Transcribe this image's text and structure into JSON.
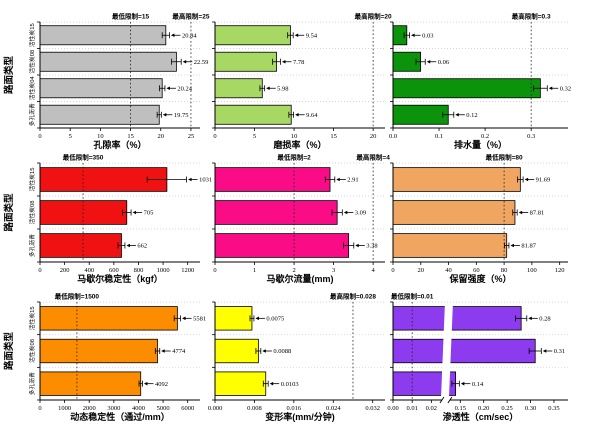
{
  "figure": {
    "y_axis_label": "路面类型"
  },
  "chart_data": [
    {
      "type": "bar",
      "orientation": "horizontal",
      "xlabel": "孔隙率（%）",
      "bar_color": "#bfbfbf",
      "categories": [
        "活性炭15",
        "活性炭08",
        "活性炭04",
        "多孔沥青"
      ],
      "values": [
        20.84,
        22.59,
        20.24,
        19.75
      ],
      "value_labels": [
        "20.84",
        "22.59",
        "20.24",
        "19.75"
      ],
      "errors": [
        0.6,
        0.8,
        0.45,
        0.35
      ],
      "xlim": [
        0,
        26.5
      ],
      "tick_values": [
        0,
        5,
        10,
        15,
        20,
        25
      ],
      "tick_labels": [
        "0",
        "5",
        "10",
        "15",
        "20",
        "25"
      ],
      "limits": [
        {
          "label": "最低限制=15",
          "value": 15,
          "color": "#ff4500"
        },
        {
          "label": "最高限制=25",
          "value": 25,
          "color": "#ff1e00"
        }
      ]
    },
    {
      "type": "bar",
      "orientation": "horizontal",
      "xlabel": "磨损率（%）",
      "bar_color": "#a8d864",
      "categories": [
        "活性炭15",
        "活性炭08",
        "活性炭04",
        "多孔沥青"
      ],
      "values": [
        9.54,
        7.78,
        5.98,
        9.64
      ],
      "value_labels": [
        "9.54",
        "7.78",
        "5.98",
        "9.64"
      ],
      "errors": [
        0.35,
        0.5,
        0.3,
        0.3
      ],
      "xlim": [
        0,
        21.5
      ],
      "tick_values": [
        0,
        5,
        10,
        15,
        20
      ],
      "tick_labels": [
        "0",
        "5",
        "10",
        "15",
        "20"
      ],
      "limits": [
        {
          "label": "最高限制=20",
          "value": 20,
          "color": "#ff1e00"
        }
      ]
    },
    {
      "type": "bar",
      "orientation": "horizontal",
      "xlabel": "排水量（%）",
      "bar_color": "#0c930c",
      "categories": [
        "活性炭15",
        "活性炭08",
        "活性炭04",
        "多孔沥青"
      ],
      "values": [
        0.03,
        0.06,
        0.32,
        0.12
      ],
      "value_labels": [
        "0.03",
        "0.06",
        "0.32",
        "0.12"
      ],
      "errors": [
        0.006,
        0.01,
        0.015,
        0.012
      ],
      "xlim": [
        0,
        0.38
      ],
      "tick_values": [
        0.0,
        0.1,
        0.2,
        0.3
      ],
      "tick_labels": [
        "0.0",
        "0.1",
        "0.2",
        "0.3"
      ],
      "limits": [
        {
          "label": "最高限制=0.3",
          "value": 0.3,
          "color": "#ff1e00"
        }
      ]
    },
    {
      "type": "bar",
      "orientation": "horizontal",
      "xlabel": "马歇尔稳定性（kgf）",
      "bar_color": "#f01212",
      "categories": [
        "活性炭15",
        "活性炭08",
        "多孔沥青"
      ],
      "values": [
        1031,
        705,
        662
      ],
      "value_labels": [
        "1031",
        "705",
        "662"
      ],
      "errors": [
        160,
        35,
        28
      ],
      "xlim": [
        0,
        1300
      ],
      "tick_values": [
        0,
        200,
        400,
        600,
        800,
        1000,
        1200
      ],
      "tick_labels": [
        "0",
        "200",
        "400",
        "600",
        "800",
        "1000",
        "1200"
      ],
      "limits": [
        {
          "label": "最低限制=350",
          "value": 350,
          "color": "#ff4500"
        }
      ]
    },
    {
      "type": "bar",
      "orientation": "horizontal",
      "xlabel": "马歇尔流量(mm)",
      "bar_color": "#fa0c86",
      "categories": [
        "活性炭15",
        "活性炭08",
        "多孔沥青"
      ],
      "values": [
        2.91,
        3.09,
        3.38
      ],
      "value_labels": [
        "2.91",
        "3.09",
        "3.38"
      ],
      "errors": [
        0.12,
        0.13,
        0.13
      ],
      "xlim": [
        0,
        4.3
      ],
      "tick_values": [
        0,
        1,
        2,
        3,
        4
      ],
      "tick_labels": [
        "0",
        "1",
        "2",
        "3",
        "4"
      ],
      "limits": [
        {
          "label": "最低限制=2",
          "value": 2,
          "color": "#ff4500"
        },
        {
          "label": "最高限制=4",
          "value": 4,
          "color": "#ff1e00"
        }
      ]
    },
    {
      "type": "bar",
      "orientation": "horizontal",
      "xlabel": "保留强度（%）",
      "bar_color": "#f0a661",
      "categories": [
        "活性炭15",
        "活性炭08",
        "多孔沥青"
      ],
      "values": [
        91.69,
        87.81,
        81.87
      ],
      "value_labels": [
        "91.69",
        "87.81",
        "81.87"
      ],
      "errors": [
        2,
        1.6,
        1.6
      ],
      "xlim": [
        0,
        126
      ],
      "tick_values": [
        0,
        20,
        40,
        60,
        80,
        100,
        120
      ],
      "tick_labels": [
        "0",
        "20",
        "40",
        "60",
        "80",
        "100",
        "120"
      ],
      "limits": [
        {
          "label": "最低限制=80",
          "value": 80,
          "color": "#ff4500"
        }
      ]
    },
    {
      "type": "bar",
      "orientation": "horizontal",
      "xlabel": "动态稳定性（通过/mm）",
      "bar_color": "#fc8c00",
      "categories": [
        "活性炭15",
        "活性炭08",
        "多孔沥青"
      ],
      "values": [
        5581,
        4774,
        4092
      ],
      "value_labels": [
        "5581",
        "4774",
        "4092"
      ],
      "errors": [
        130,
        90,
        70
      ],
      "xlim": [
        0,
        6500
      ],
      "tick_values": [
        0,
        1000,
        2000,
        3000,
        4000,
        5000,
        6000
      ],
      "tick_labels": [
        "0",
        "1000",
        "2000",
        "3000",
        "4000",
        "5000",
        "6000"
      ],
      "limits": [
        {
          "label": "最低限制=1500",
          "value": 1500,
          "color": "#ff4500"
        }
      ]
    },
    {
      "type": "bar",
      "orientation": "horizontal",
      "xlabel": "变形率(mm/分钟)",
      "bar_color": "#ffff00",
      "categories": [
        "活性炭15",
        "活性炭08",
        "多孔沥青"
      ],
      "values": [
        0.0075,
        0.0088,
        0.0103
      ],
      "value_labels": [
        "0.0075",
        "0.0088",
        "0.0103"
      ],
      "errors": [
        0.0004,
        0.0005,
        0.0005
      ],
      "xlim": [
        0,
        0.0345
      ],
      "tick_values": [
        0.0,
        0.008,
        0.016,
        0.024,
        0.032
      ],
      "tick_labels": [
        "0.000",
        "0.008",
        "0.016",
        "0.024",
        "0.032"
      ],
      "limits": [
        {
          "label": "最高限制=0.028",
          "value": 0.028,
          "color": "#ff1e00"
        }
      ]
    },
    {
      "type": "bar",
      "orientation": "horizontal",
      "xlabel": "渗透性（cm/sec）",
      "bar_color": "#8c3bee",
      "categories": [
        "活性炭15",
        "活性炭08",
        "多孔沥青"
      ],
      "values": [
        0.28,
        0.31,
        0.14
      ],
      "value_labels": [
        "0.28",
        "0.31",
        "0.14"
      ],
      "errors": [
        0.012,
        0.013,
        0.008
      ],
      "xlim": [
        0,
        0.38
      ],
      "axis_break": {
        "segment_a_max": 0.025,
        "segment_a_fraction": 0.274,
        "gap_fraction": 0.057,
        "segment_b_min": 0.13,
        "segment_b_max": 0.38
      },
      "tick_values": [
        0.0,
        0.01,
        0.02,
        0.15,
        0.2,
        0.25,
        0.3,
        0.35
      ],
      "tick_labels": [
        "0.00",
        "0.01",
        "0.02",
        "0.15",
        "0.20",
        "0.25",
        "0.30",
        "0.35"
      ],
      "limits": [
        {
          "label": "最低限制=0.01",
          "value": 0.01,
          "color": "#ff4500"
        }
      ]
    }
  ]
}
